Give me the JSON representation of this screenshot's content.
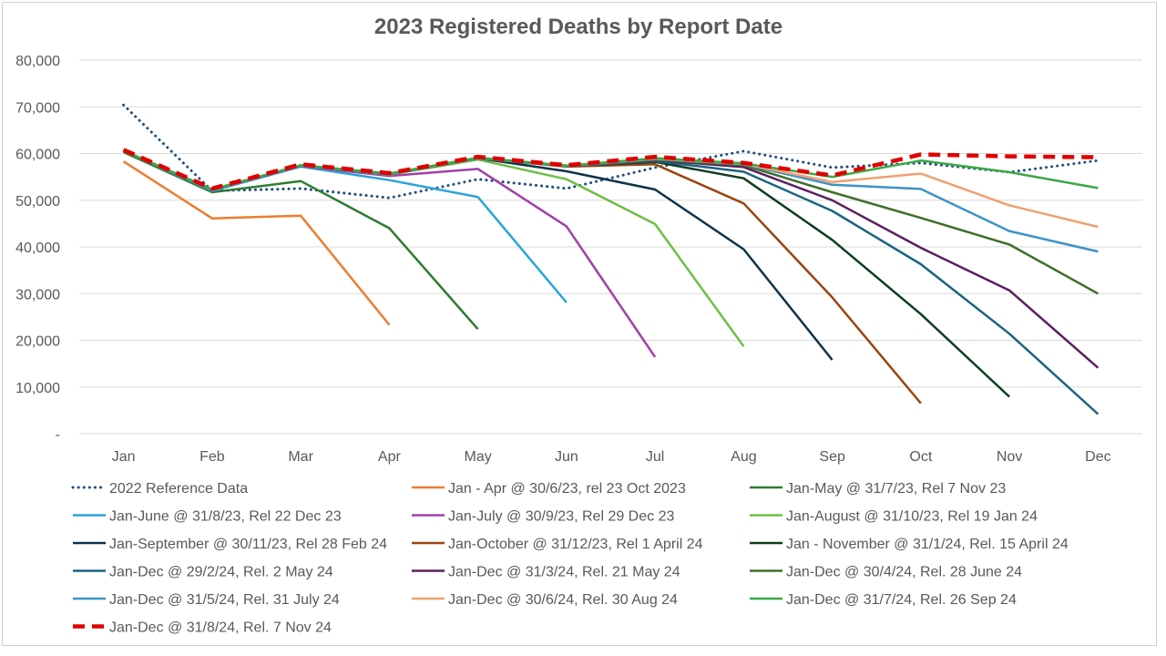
{
  "chart_data": {
    "type": "line",
    "title": "2023 Registered Deaths by Report Date",
    "xlabel": "",
    "ylabel": "",
    "categories": [
      "Jan",
      "Feb",
      "Mar",
      "Apr",
      "May",
      "Jun",
      "Jul",
      "Aug",
      "Sep",
      "Oct",
      "Nov",
      "Dec"
    ],
    "ylim": [
      0,
      80000
    ],
    "y_ticks": [
      {
        "value": 0,
        "label": "-"
      },
      {
        "value": 10000,
        "label": "10,000"
      },
      {
        "value": 20000,
        "label": "20,000"
      },
      {
        "value": 30000,
        "label": "30,000"
      },
      {
        "value": 40000,
        "label": "40,000"
      },
      {
        "value": 50000,
        "label": "50,000"
      },
      {
        "value": 60000,
        "label": "60,000"
      },
      {
        "value": 70000,
        "label": "70,000"
      },
      {
        "value": 80000,
        "label": "80,000"
      }
    ],
    "grid": true,
    "legend_position": "bottom",
    "series": [
      {
        "name": "2022 Reference Data",
        "color": "#1f4e79",
        "style": "dotted",
        "values": [
          70400,
          52000,
          52500,
          50500,
          54500,
          52500,
          57000,
          60500,
          57000,
          58000,
          56000,
          58500
        ]
      },
      {
        "name": "Jan - Apr @ 30/6/23, rel 23 Oct 2023",
        "color": "#ed7d31",
        "style": "solid",
        "values": [
          58300,
          46100,
          46700,
          23300,
          null,
          null,
          null,
          null,
          null,
          null,
          null,
          null
        ]
      },
      {
        "name": "Jan-May @ 31/7/23, Rel 7 Nov 23",
        "color": "#2e7d32",
        "style": "solid",
        "values": [
          60300,
          51700,
          54100,
          44000,
          22400,
          null,
          null,
          null,
          null,
          null,
          null,
          null
        ]
      },
      {
        "name": "Jan-June @ 31/8/23, Rel 22 Dec 23",
        "color": "#29a3d9",
        "style": "solid",
        "values": [
          60600,
          52000,
          57200,
          54300,
          50700,
          28100,
          null,
          null,
          null,
          null,
          null,
          null
        ]
      },
      {
        "name": "Jan-July @ 30/9/23, Rel 29 Dec 23",
        "color": "#a23fa8",
        "style": "solid",
        "values": [
          60600,
          52200,
          57300,
          55200,
          56700,
          44400,
          16400,
          null,
          null,
          null,
          null,
          null
        ]
      },
      {
        "name": "Jan-August @ 31/10/23, Rel 19 Jan 24",
        "color": "#6cbf45",
        "style": "solid",
        "values": [
          60600,
          52300,
          57400,
          55500,
          58700,
          54500,
          44900,
          18700,
          null,
          null,
          null,
          null
        ]
      },
      {
        "name": "Jan-September @ 30/11/23, Rel 28 Feb 24",
        "color": "#0e3349",
        "style": "solid",
        "values": [
          60600,
          52300,
          57400,
          55600,
          59000,
          56200,
          52300,
          39500,
          15800,
          null,
          null,
          null
        ]
      },
      {
        "name": "Jan-October @ 31/12/23, Rel 1 April 24",
        "color": "#9b4510",
        "style": "solid",
        "values": [
          60600,
          52300,
          57400,
          55600,
          59000,
          57200,
          57700,
          49300,
          29200,
          6500,
          null,
          null
        ]
      },
      {
        "name": "Jan - November @ 31/1/24, Rel. 15 April 24",
        "color": "#0f3d1f",
        "style": "solid",
        "values": [
          60600,
          52300,
          57400,
          55600,
          59000,
          57300,
          58200,
          54700,
          41500,
          25600,
          7900,
          null
        ]
      },
      {
        "name": "Jan-Dec @ 29/2/24, Rel. 2 May 24",
        "color": "#1a6580",
        "style": "solid",
        "values": [
          60600,
          52300,
          57400,
          55600,
          59000,
          57300,
          58400,
          56100,
          47700,
          36300,
          21400,
          4200
        ]
      },
      {
        "name": "Jan-Dec @ 31/3/24, Rel. 21 May 24",
        "color": "#5c1f5c",
        "style": "solid",
        "values": [
          60600,
          52300,
          57400,
          55600,
          59000,
          57300,
          58600,
          57100,
          50000,
          39800,
          30700,
          14100
        ]
      },
      {
        "name": "Jan-Dec @ 30/4/24, Rel. 28 June 24",
        "color": "#3f6e2a",
        "style": "solid",
        "values": [
          60600,
          52300,
          57400,
          55600,
          59000,
          57300,
          58700,
          57500,
          51700,
          46200,
          40500,
          30000
        ]
      },
      {
        "name": "Jan-Dec @ 31/5/24, Rel. 31 July 24",
        "color": "#3b93c7",
        "style": "solid",
        "values": [
          60600,
          52300,
          57400,
          55600,
          59000,
          57300,
          58800,
          57700,
          53300,
          52400,
          43400,
          39000
        ]
      },
      {
        "name": "Jan-Dec @ 30/6/24, Rel. 30 Aug 24",
        "color": "#f0a070",
        "style": "solid",
        "values": [
          60600,
          52300,
          57500,
          55700,
          59100,
          57400,
          58900,
          57800,
          53900,
          55700,
          48900,
          44300
        ]
      },
      {
        "name": "Jan-Dec @ 31/7/24, Rel. 26 Sep 24",
        "color": "#3aa845",
        "style": "solid",
        "values": [
          60600,
          52300,
          57500,
          55700,
          59100,
          57400,
          59000,
          57900,
          55000,
          58500,
          56000,
          52600
        ]
      },
      {
        "name": "Jan-Dec @ 31/8/24, Rel. 7 Nov 24",
        "color": "#e00000",
        "style": "dashed",
        "values": [
          60800,
          52500,
          57700,
          55800,
          59300,
          57500,
          59300,
          58000,
          55300,
          59800,
          59400,
          59200
        ]
      }
    ]
  }
}
